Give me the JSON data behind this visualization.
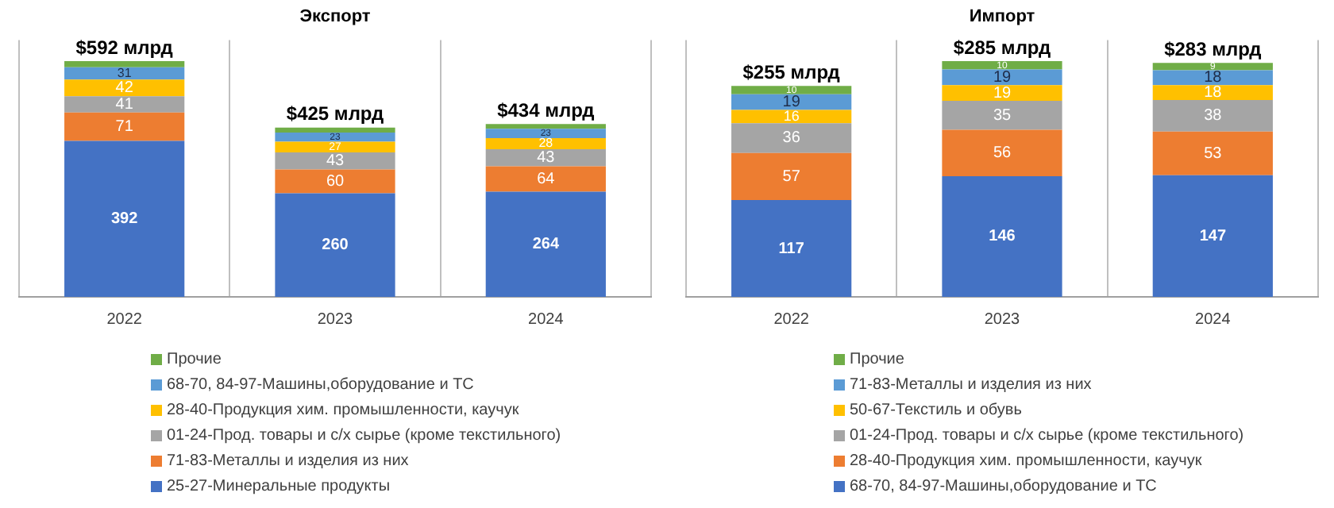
{
  "chart_data": [
    {
      "type": "bar",
      "title": "Экспорт",
      "categories": [
        "2022",
        "2023",
        "2024"
      ],
      "stacked": true,
      "grid": "x",
      "tick_labels": "x",
      "legend": "bottom",
      "series": [
        {
          "name": "25-27-Минеральные продукты",
          "color": "#4472c4",
          "values": [
            392,
            260,
            264
          ],
          "value_labels": [
            "392",
            "260",
            "264"
          ]
        },
        {
          "name": "71-83-Металлы и изделия из них",
          "color": "#ed7d31",
          "values": [
            71,
            60,
            64
          ],
          "value_labels": [
            "71",
            "60",
            "64"
          ]
        },
        {
          "name": "01-24-Прод. товары и с/х сырье (кроме текстильного)",
          "color": "#a5a5a5",
          "values": [
            41,
            43,
            43
          ],
          "value_labels": [
            "41",
            "43",
            "43"
          ]
        },
        {
          "name": "28-40-Продукция хим. промышленности, каучук",
          "color": "#ffc000",
          "values": [
            42,
            27,
            28
          ],
          "value_labels": [
            "42",
            "27",
            "28"
          ]
        },
        {
          "name": "68-70, 84-97-Машины,оборудование и ТС",
          "color": "#5b9bd5",
          "values": [
            31,
            23,
            23
          ],
          "value_labels": [
            "31",
            "23",
            "23"
          ]
        },
        {
          "name": "Прочие",
          "color": "#70ad47",
          "values": [
            15,
            12,
            12
          ],
          "value_labels": [
            null,
            null,
            null
          ]
        }
      ],
      "totals": [
        "$592 млрд",
        "$425 млрд",
        "$434 млрд"
      ]
    },
    {
      "type": "bar",
      "title": "Импорт",
      "categories": [
        "2022",
        "2023",
        "2024"
      ],
      "stacked": true,
      "grid": "x",
      "tick_labels": "x",
      "legend": "bottom",
      "series": [
        {
          "name": "68-70, 84-97-Машины,оборудование и ТС",
          "color": "#4472c4",
          "values": [
            117,
            146,
            147
          ],
          "value_labels": [
            "117",
            "146",
            "147"
          ]
        },
        {
          "name": "28-40-Продукция хим. промышленности, каучук",
          "color": "#ed7d31",
          "values": [
            57,
            56,
            53
          ],
          "value_labels": [
            "57",
            "56",
            "53"
          ]
        },
        {
          "name": "01-24-Прод. товары и с/х сырье (кроме текстильного)",
          "color": "#a5a5a5",
          "values": [
            36,
            35,
            38
          ],
          "value_labels": [
            "36",
            "35",
            "38"
          ]
        },
        {
          "name": "50-67-Текстиль и обувь",
          "color": "#ffc000",
          "values": [
            16,
            19,
            18
          ],
          "value_labels": [
            "16",
            "19",
            "18"
          ]
        },
        {
          "name": "71-83-Металлы и изделия из них",
          "color": "#5b9bd5",
          "values": [
            19,
            19,
            18
          ],
          "value_labels": [
            "19",
            "19",
            "18"
          ]
        },
        {
          "name": "Прочие",
          "color": "#70ad47",
          "values": [
            10,
            10,
            9
          ],
          "value_labels": [
            "10",
            "10",
            "9"
          ]
        }
      ],
      "totals": [
        "$255 млрд",
        "$285 млрд",
        "$283 млрд"
      ]
    }
  ]
}
